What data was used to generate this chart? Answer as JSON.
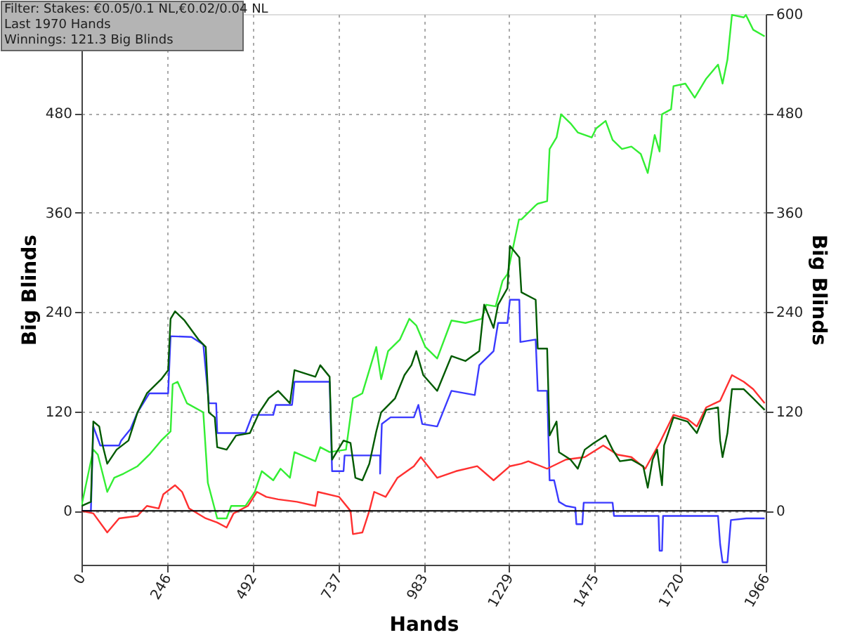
{
  "chart_data": {
    "type": "line",
    "xlabel": "Hands",
    "ylabel": "Big Blinds",
    "y2label": "Big Blinds",
    "annotations": [
      "Filter: Stakes: €0.05/0.1 NL,€0.02/0.04 NL",
      "Last  1970 Hands",
      "Winnings: 121.3 Big Blinds"
    ],
    "xlim": [
      0,
      1966
    ],
    "xticks": [
      0,
      246,
      492,
      737,
      983,
      1229,
      1475,
      1720,
      1966
    ],
    "ylim": [
      -65,
      600
    ],
    "yticks": [
      0,
      120,
      240,
      360,
      480
    ],
    "y2lim": [
      -65,
      600
    ],
    "y2ticks": [
      0,
      120,
      240,
      360,
      480,
      600
    ],
    "grid": true,
    "legend": false,
    "marker": "none",
    "line_style": "solid",
    "ref_lines": [
      {
        "axis": "y",
        "value": 0,
        "color": "#000000"
      }
    ],
    "series": [
      {
        "color": "#33ee33",
        "x": [
          0,
          34,
          47,
          74,
          94,
          121,
          161,
          195,
          229,
          256,
          262,
          276,
          303,
          350,
          363,
          390,
          417,
          430,
          471,
          498,
          518,
          551,
          572,
          599,
          612,
          672,
          686,
          713,
          760,
          780,
          807,
          847,
          861,
          881,
          915,
          942,
          962,
          988,
          1022,
          1063,
          1103,
          1150,
          1163,
          1190,
          1210,
          1224,
          1257,
          1264,
          1305,
          1311,
          1338,
          1345,
          1365,
          1378,
          1405,
          1426,
          1466,
          1479,
          1506,
          1526,
          1553,
          1580,
          1607,
          1627,
          1647,
          1661,
          1668,
          1694,
          1701,
          1735,
          1762,
          1795,
          1829,
          1842,
          1856,
          1869,
          1903,
          1909,
          1930,
          1963
        ],
        "values": [
          6,
          74,
          68,
          23,
          40,
          45,
          54,
          68,
          85,
          96,
          153,
          156,
          130,
          119,
          34,
          -9,
          -9,
          6,
          6,
          23,
          48,
          37,
          51,
          40,
          71,
          60,
          77,
          71,
          74,
          136,
          142,
          198,
          159,
          193,
          207,
          232,
          224,
          198,
          184,
          230,
          227,
          232,
          249,
          247,
          278,
          286,
          352,
          352,
          369,
          371,
          374,
          437,
          451,
          479,
          468,
          457,
          451,
          462,
          471,
          448,
          437,
          440,
          431,
          408,
          454,
          434,
          479,
          485,
          513,
          516,
          499,
          522,
          539,
          516,
          545,
          599,
          596,
          599,
          581,
          573
        ]
      },
      {
        "color": "#3a3aff",
        "x": [
          0,
          27,
          34,
          54,
          108,
          114,
          141,
          161,
          195,
          249,
          256,
          316,
          350,
          366,
          387,
          390,
          471,
          491,
          551,
          558,
          605,
          612,
          713,
          720,
          753,
          756,
          858,
          858,
          863,
          888,
          955,
          968,
          979,
          1022,
          1063,
          1130,
          1143,
          1184,
          1197,
          1224,
          1231,
          1258,
          1261,
          1305,
          1311,
          1338,
          1345,
          1358,
          1372,
          1392,
          1419,
          1422,
          1439,
          1443,
          1526,
          1530,
          1658,
          1661,
          1668,
          1671,
          1829,
          1835,
          1842,
          1856,
          1866,
          1910,
          1963
        ],
        "values": [
          0,
          0,
          102,
          79,
          79,
          85,
          99,
          119,
          142,
          142,
          211,
          210,
          201,
          130,
          130,
          94,
          94,
          116,
          116,
          128,
          128,
          156,
          156,
          48,
          48,
          67,
          67,
          45,
          105,
          113,
          113,
          128,
          105,
          102,
          145,
          140,
          176,
          193,
          227,
          227,
          255,
          255,
          204,
          207,
          145,
          145,
          37,
          37,
          11,
          6,
          4,
          -16,
          -16,
          10,
          10,
          -6,
          -6,
          -48,
          -48,
          -6,
          -6,
          -40,
          -62,
          -62,
          -11,
          -9,
          -9
        ]
      },
      {
        "color": "#ff3030",
        "x": [
          0,
          34,
          74,
          108,
          161,
          188,
          222,
          235,
          269,
          289,
          309,
          357,
          390,
          417,
          437,
          478,
          504,
          531,
          565,
          619,
          672,
          679,
          740,
          773,
          780,
          807,
          827,
          841,
          874,
          908,
          955,
          975,
          1022,
          1076,
          1137,
          1184,
          1231,
          1264,
          1284,
          1338,
          1392,
          1446,
          1499,
          1540,
          1580,
          1620,
          1661,
          1701,
          1741,
          1768,
          1795,
          1835,
          1869,
          1903,
          1930,
          1963
        ],
        "values": [
          0,
          -3,
          -26,
          -9,
          -6,
          6,
          3,
          20,
          31,
          23,
          3,
          -9,
          -14,
          -20,
          -3,
          6,
          23,
          17,
          14,
          11,
          6,
          23,
          17,
          0,
          -28,
          -26,
          0,
          23,
          17,
          40,
          54,
          65,
          40,
          48,
          54,
          37,
          54,
          57,
          60,
          51,
          62,
          65,
          79,
          68,
          65,
          51,
          82,
          116,
          111,
          102,
          125,
          133,
          164,
          156,
          147,
          130
        ]
      },
      {
        "color": "#005a00",
        "x": [
          0,
          27,
          34,
          51,
          61,
          74,
          101,
          135,
          161,
          188,
          229,
          249,
          256,
          269,
          296,
          336,
          357,
          366,
          383,
          390,
          417,
          444,
          484,
          511,
          538,
          565,
          599,
          612,
          672,
          686,
          713,
          720,
          753,
          773,
          787,
          807,
          827,
          847,
          861,
          901,
          928,
          948,
          962,
          982,
          1022,
          1063,
          1103,
          1143,
          1157,
          1184,
          1197,
          1224,
          1231,
          1258,
          1264,
          1305,
          1311,
          1338,
          1345,
          1365,
          1372,
          1405,
          1426,
          1446,
          1472,
          1506,
          1526,
          1547,
          1580,
          1614,
          1627,
          1641,
          1654,
          1668,
          1674,
          1701,
          1741,
          1768,
          1795,
          1829,
          1835,
          1842,
          1856,
          1869,
          1903,
          1930,
          1963
        ],
        "values": [
          6,
          11,
          108,
          102,
          79,
          57,
          74,
          85,
          119,
          142,
          159,
          170,
          232,
          241,
          230,
          207,
          198,
          119,
          113,
          77,
          74,
          91,
          94,
          119,
          136,
          145,
          130,
          170,
          162,
          176,
          162,
          62,
          85,
          82,
          40,
          37,
          57,
          96,
          119,
          136,
          164,
          176,
          193,
          164,
          145,
          187,
          181,
          193,
          249,
          221,
          249,
          269,
          320,
          306,
          264,
          255,
          196,
          196,
          91,
          108,
          71,
          62,
          51,
          74,
          82,
          91,
          74,
          60,
          62,
          54,
          28,
          62,
          74,
          31,
          79,
          113,
          108,
          94,
          122,
          125,
          85,
          65,
          94,
          147,
          147,
          136,
          122
        ]
      }
    ]
  }
}
